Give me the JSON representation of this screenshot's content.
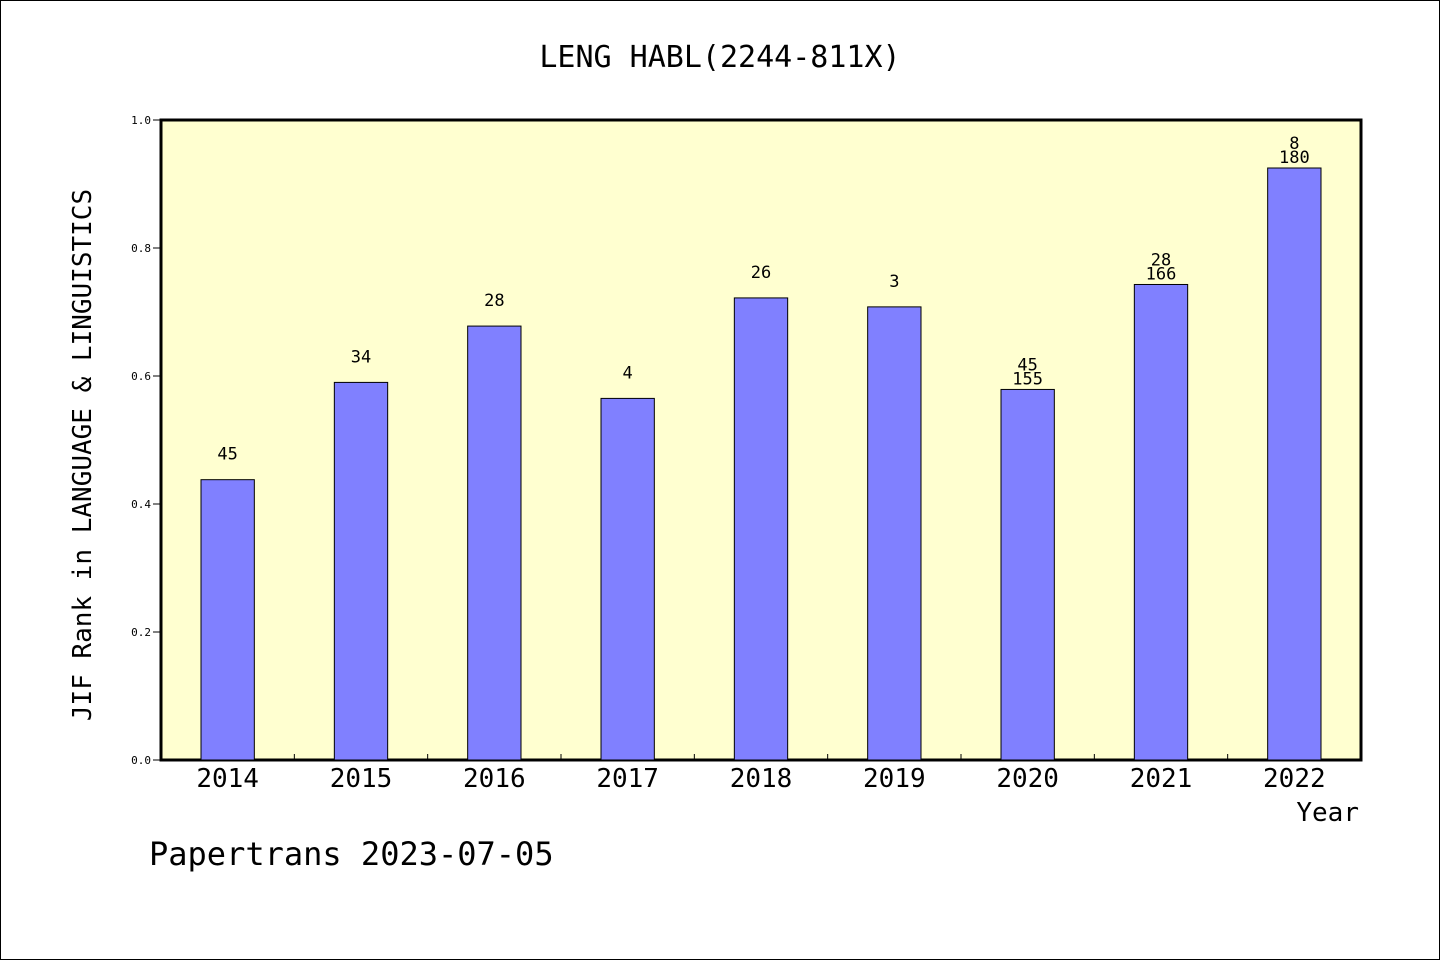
{
  "chart_data": {
    "type": "bar",
    "title": "LENG HABL(2244-811X)",
    "xlabel": "Year",
    "ylabel": "JIF Rank in LANGUAGE & LINGUISTICS",
    "ylim": [
      0,
      1.0
    ],
    "yticks": [
      "0.0",
      "0.2",
      "0.4",
      "0.6",
      "0.8",
      "1.0"
    ],
    "categories": [
      "2014",
      "2015",
      "2016",
      "2017",
      "2018",
      "2019",
      "2020",
      "2021",
      "2022"
    ],
    "values": [
      0.438,
      0.59,
      0.678,
      0.565,
      0.722,
      0.708,
      0.579,
      0.743,
      0.925
    ],
    "labels": [
      [
        "45"
      ],
      [
        "34"
      ],
      [
        "28"
      ],
      [
        "4"
      ],
      [
        "26"
      ],
      [
        "3"
      ],
      [
        "45",
        "155"
      ],
      [
        "28",
        "166"
      ],
      [
        "8",
        "180"
      ]
    ],
    "grid": false,
    "background": "#ffffd0",
    "bar_color": "#8080ff"
  },
  "footer": "Papertrans 2023-07-05"
}
